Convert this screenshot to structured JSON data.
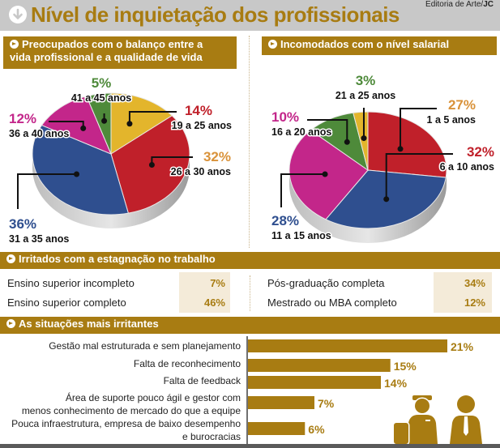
{
  "header": {
    "title": "Nível de inquietação dos profissionais",
    "credit_prefix": "Editoria de Arte/",
    "credit_brand": "JC",
    "icon": "circle-down-arrow-icon"
  },
  "colors": {
    "accent": "#a87c12",
    "green": "#4e8a3a",
    "yellow": "#e3b52c",
    "red": "#c0202a",
    "blue": "#2f4f8f",
    "magenta": "#c3268a",
    "orange": "#d9923a",
    "tint": "#f4ebd9"
  },
  "chart_data": [
    {
      "type": "pie",
      "title": "Preocupados com o balanço entre a vida profissional e a qualidade de vida",
      "title_line1": "Preocupados com o balanço entre a",
      "title_line2": "vida profissional e a qualidade de vida",
      "slices": [
        {
          "label": "19 a 25 anos",
          "value": 14,
          "value_label": "14%",
          "color": "#e3b52c",
          "label_color": "#c0202a"
        },
        {
          "label": "26 a 30 anos",
          "value": 32,
          "value_label": "32%",
          "color": "#c0202a",
          "label_color": "#d9923a"
        },
        {
          "label": "31 a 35 anos",
          "value": 36,
          "value_label": "36%",
          "color": "#2f4f8f",
          "label_color": "#2f4f8f"
        },
        {
          "label": "36 a 40 anos",
          "value": 12,
          "value_label": "12%",
          "color": "#c3268a",
          "label_color": "#c3268a"
        },
        {
          "label": "41 a 45 anos",
          "value": 5,
          "value_label": "5%",
          "color": "#4e8a3a",
          "label_color": "#4e8a3a"
        }
      ]
    },
    {
      "type": "pie",
      "title": "Incomodados com o nível salarial",
      "slices": [
        {
          "label": "1 a 5 anos",
          "value": 27,
          "value_label": "27%",
          "color": "#c0202a",
          "label_color": "#d9923a"
        },
        {
          "label": "6 a 10 anos",
          "value": 32,
          "value_label": "32%",
          "color": "#2f4f8f",
          "label_color": "#c0202a"
        },
        {
          "label": "11 a 15 anos",
          "value": 28,
          "value_label": "28%",
          "color": "#c3268a",
          "label_color": "#2f4f8f"
        },
        {
          "label": "16 a 20 anos",
          "value": 10,
          "value_label": "10%",
          "color": "#4e8a3a",
          "label_color": "#c3268a"
        },
        {
          "label": "21 a 25 anos",
          "value": 3,
          "value_label": "3%",
          "color": "#e3b52c",
          "label_color": "#4e8a3a"
        }
      ]
    },
    {
      "type": "table",
      "title": "Irritados com a estagnação no trabalho",
      "left": [
        {
          "label": "Ensino superior incompleto",
          "value": "7%"
        },
        {
          "label": "Ensino superior completo",
          "value": "46%"
        }
      ],
      "right": [
        {
          "label": "Pós-graduação completa",
          "value": "34%"
        },
        {
          "label": "Mestrado ou MBA completo",
          "value": "12%"
        }
      ]
    },
    {
      "type": "bar",
      "orientation": "horizontal",
      "title": "As situações mais irritantes",
      "categories": [
        [
          "Gestão mal estruturada e sem planejamento"
        ],
        [
          "Falta de reconhecimento"
        ],
        [
          "Falta de feedback"
        ],
        [
          "Área de suporte pouco ágil e gestor com",
          "menos conhecimento de mercado do que a equipe"
        ],
        [
          "Pouca infraestrutura, empresa de baixo desempenho",
          "e burocracias"
        ]
      ],
      "values": [
        21,
        15,
        14,
        7,
        6
      ],
      "value_labels": [
        "21%",
        "15%",
        "14%",
        "7%",
        "6%"
      ],
      "xlim": [
        0,
        21
      ]
    }
  ],
  "illustration": {
    "icon": "two-professionals-icon"
  }
}
